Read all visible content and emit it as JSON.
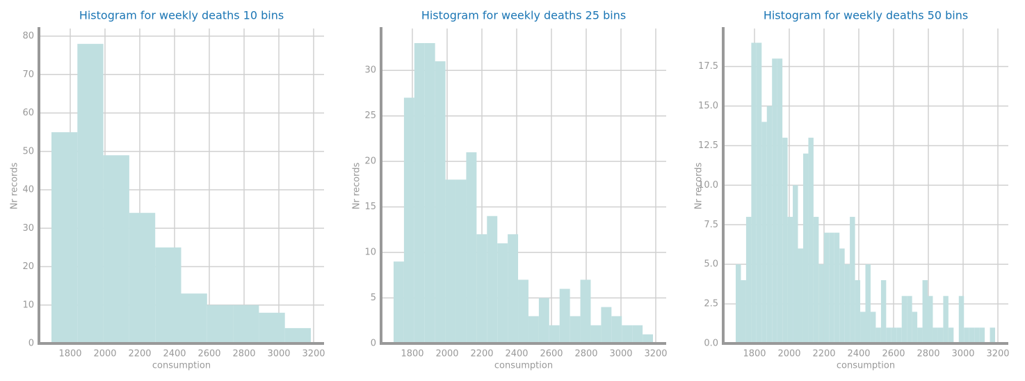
{
  "chart_data": [
    {
      "type": "histogram",
      "title": "Histogram for weekly deaths 10 bins",
      "x_label": "consumption",
      "y_label": "Nr records",
      "color": "#bfdfe0",
      "grid": true,
      "bins": [
        1692,
        1841.2,
        1990.4,
        2139.6,
        2288.8,
        2438,
        2587.2,
        2736.4,
        2885.6,
        3034.8,
        3184
      ],
      "values": [
        55,
        78,
        49,
        34,
        25,
        13,
        10,
        10,
        8,
        4
      ],
      "xlim": [
        1620,
        3260
      ],
      "xticks": [
        1800,
        2000,
        2200,
        2400,
        2600,
        2800,
        3000,
        3200
      ],
      "ylim": [
        0,
        82
      ],
      "yticks": [
        0,
        10,
        20,
        30,
        40,
        50,
        60,
        70,
        80
      ]
    },
    {
      "type": "histogram",
      "title": "Histogram for weekly deaths 25 bins",
      "x_label": "consumption",
      "y_label": "Nr records",
      "color": "#bfdfe0",
      "grid": true,
      "bins": [
        1692,
        1751.68,
        1811.36,
        1871.04,
        1930.72,
        1990.4,
        2050.08,
        2109.76,
        2169.44,
        2229.12,
        2288.8,
        2348.48,
        2408.16,
        2467.84,
        2527.52,
        2587.2,
        2646.88,
        2706.56,
        2766.24,
        2825.92,
        2885.6,
        2945.28,
        3004.96,
        3064.64,
        3124.32,
        3184
      ],
      "values": [
        9,
        27,
        33,
        33,
        31,
        18,
        18,
        21,
        12,
        14,
        11,
        12,
        7,
        3,
        5,
        2,
        6,
        3,
        7,
        2,
        4,
        3,
        2,
        2,
        1
      ],
      "xlim": [
        1620,
        3260
      ],
      "xticks": [
        1800,
        2000,
        2200,
        2400,
        2600,
        2800,
        3000,
        3200
      ],
      "ylim": [
        0,
        34.6
      ],
      "yticks": [
        0,
        5,
        10,
        15,
        20,
        25,
        30
      ]
    },
    {
      "type": "histogram",
      "title": "Histogram for weekly deaths 50 bins",
      "x_label": "consumption",
      "y_label": "Nr records",
      "color": "#bfdfe0",
      "grid": true,
      "bins": [
        1692,
        1721.84,
        1751.68,
        1781.52,
        1811.36,
        1841.2,
        1871.04,
        1900.88,
        1930.72,
        1960.56,
        1990.4,
        2020.24,
        2050.08,
        2079.92,
        2109.76,
        2139.6,
        2169.44,
        2199.28,
        2229.12,
        2258.96,
        2288.8,
        2318.64,
        2348.48,
        2378.32,
        2408.16,
        2438,
        2467.84,
        2497.68,
        2527.52,
        2557.36,
        2587.2,
        2617.04,
        2646.88,
        2676.72,
        2706.56,
        2736.4,
        2766.24,
        2796.08,
        2825.92,
        2855.76,
        2885.6,
        2915.44,
        2945.28,
        2975.12,
        3004.96,
        3034.8,
        3064.64,
        3094.48,
        3124.32,
        3154.16,
        3184
      ],
      "values": [
        5,
        4,
        8,
        19,
        19,
        14,
        15,
        18,
        18,
        13,
        8,
        10,
        6,
        12,
        13,
        8,
        5,
        7,
        7,
        7,
        6,
        5,
        8,
        4,
        2,
        5,
        2,
        1,
        4,
        1,
        1,
        1,
        3,
        3,
        2,
        1,
        4,
        3,
        1,
        1,
        3,
        1,
        0,
        3,
        1,
        1,
        1,
        1,
        0,
        1
      ],
      "xlim": [
        1620,
        3260
      ],
      "xticks": [
        1800,
        2000,
        2200,
        2400,
        2600,
        2800,
        3000,
        3200
      ],
      "ylim": [
        0,
        19.9
      ],
      "yticks": [
        {
          "value": 0,
          "label": "0.0"
        },
        2.5,
        {
          "value": 5,
          "label": "5.0"
        },
        7.5,
        {
          "value": 10,
          "label": "10.0"
        },
        12.5,
        {
          "value": 15,
          "label": "15.0"
        },
        17.5
      ]
    }
  ]
}
